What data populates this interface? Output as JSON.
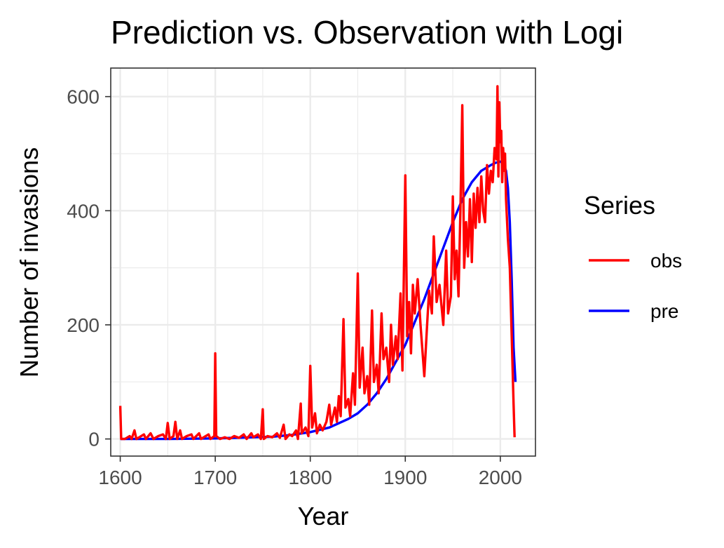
{
  "chart_data": {
    "type": "line",
    "title": "Prediction vs. Observation with Logi",
    "xlabel": "Year",
    "ylabel": "Number of invasions",
    "xlim": [
      1590,
      2037
    ],
    "ylim": [
      -30,
      650
    ],
    "x_ticks": [
      1600,
      1700,
      1800,
      1900,
      2000
    ],
    "x_tick_labels": [
      "1600",
      "1700",
      "1800",
      "1900",
      "2000"
    ],
    "y_ticks": [
      0,
      200,
      400,
      600
    ],
    "y_tick_labels": [
      "0",
      "200",
      "400",
      "600"
    ],
    "grid": true,
    "legend": {
      "title": "Series",
      "position": "right",
      "entries": [
        {
          "label": "obs",
          "color": "#ff0000"
        },
        {
          "label": "pre",
          "color": "#0000ff"
        }
      ]
    },
    "series": [
      {
        "name": "obs",
        "color": "#ff0000",
        "points": [
          [
            1600,
            58
          ],
          [
            1601,
            0
          ],
          [
            1605,
            0
          ],
          [
            1610,
            5
          ],
          [
            1612,
            0
          ],
          [
            1615,
            15
          ],
          [
            1617,
            0
          ],
          [
            1620,
            3
          ],
          [
            1625,
            8
          ],
          [
            1627,
            0
          ],
          [
            1632,
            10
          ],
          [
            1635,
            0
          ],
          [
            1640,
            5
          ],
          [
            1645,
            8
          ],
          [
            1648,
            0
          ],
          [
            1650,
            28
          ],
          [
            1652,
            0
          ],
          [
            1656,
            5
          ],
          [
            1658,
            30
          ],
          [
            1660,
            0
          ],
          [
            1663,
            15
          ],
          [
            1665,
            0
          ],
          [
            1670,
            5
          ],
          [
            1675,
            8
          ],
          [
            1677,
            0
          ],
          [
            1683,
            10
          ],
          [
            1685,
            0
          ],
          [
            1690,
            5
          ],
          [
            1693,
            8
          ],
          [
            1695,
            0
          ],
          [
            1699,
            5
          ],
          [
            1700,
            150
          ],
          [
            1701,
            5
          ],
          [
            1705,
            0
          ],
          [
            1710,
            3
          ],
          [
            1715,
            0
          ],
          [
            1720,
            5
          ],
          [
            1725,
            2
          ],
          [
            1730,
            8
          ],
          [
            1733,
            0
          ],
          [
            1738,
            10
          ],
          [
            1740,
            3
          ],
          [
            1745,
            8
          ],
          [
            1748,
            0
          ],
          [
            1750,
            52
          ],
          [
            1751,
            0
          ],
          [
            1755,
            5
          ],
          [
            1760,
            3
          ],
          [
            1765,
            10
          ],
          [
            1768,
            2
          ],
          [
            1772,
            25
          ],
          [
            1774,
            0
          ],
          [
            1778,
            8
          ],
          [
            1781,
            5
          ],
          [
            1785,
            15
          ],
          [
            1787,
            0
          ],
          [
            1790,
            62
          ],
          [
            1791,
            10
          ],
          [
            1795,
            20
          ],
          [
            1798,
            5
          ],
          [
            1800,
            128
          ],
          [
            1802,
            20
          ],
          [
            1805,
            45
          ],
          [
            1807,
            10
          ],
          [
            1810,
            25
          ],
          [
            1813,
            15
          ],
          [
            1817,
            30
          ],
          [
            1820,
            60
          ],
          [
            1822,
            25
          ],
          [
            1826,
            55
          ],
          [
            1828,
            30
          ],
          [
            1830,
            75
          ],
          [
            1832,
            40
          ],
          [
            1835,
            210
          ],
          [
            1837,
            55
          ],
          [
            1840,
            70
          ],
          [
            1842,
            40
          ],
          [
            1845,
            115
          ],
          [
            1847,
            60
          ],
          [
            1850,
            290
          ],
          [
            1852,
            90
          ],
          [
            1855,
            160
          ],
          [
            1857,
            80
          ],
          [
            1860,
            110
          ],
          [
            1862,
            60
          ],
          [
            1865,
            225
          ],
          [
            1867,
            100
          ],
          [
            1870,
            130
          ],
          [
            1872,
            80
          ],
          [
            1875,
            220
          ],
          [
            1877,
            140
          ],
          [
            1880,
            160
          ],
          [
            1883,
            100
          ],
          [
            1885,
            200
          ],
          [
            1887,
            130
          ],
          [
            1890,
            180
          ],
          [
            1892,
            140
          ],
          [
            1895,
            255
          ],
          [
            1897,
            120
          ],
          [
            1900,
            462
          ],
          [
            1902,
            180
          ],
          [
            1904,
            240
          ],
          [
            1906,
            150
          ],
          [
            1908,
            270
          ],
          [
            1910,
            220
          ],
          [
            1913,
            280
          ],
          [
            1916,
            200
          ],
          [
            1920,
            110
          ],
          [
            1923,
            200
          ],
          [
            1925,
            260
          ],
          [
            1928,
            220
          ],
          [
            1930,
            355
          ],
          [
            1933,
            240
          ],
          [
            1936,
            270
          ],
          [
            1940,
            200
          ],
          [
            1943,
            330
          ],
          [
            1945,
            220
          ],
          [
            1948,
            250
          ],
          [
            1950,
            425
          ],
          [
            1952,
            280
          ],
          [
            1954,
            330
          ],
          [
            1956,
            250
          ],
          [
            1958,
            400
          ],
          [
            1960,
            585
          ],
          [
            1962,
            300
          ],
          [
            1964,
            380
          ],
          [
            1966,
            320
          ],
          [
            1968,
            420
          ],
          [
            1970,
            310
          ],
          [
            1972,
            430
          ],
          [
            1974,
            370
          ],
          [
            1976,
            440
          ],
          [
            1978,
            380
          ],
          [
            1980,
            460
          ],
          [
            1982,
            400
          ],
          [
            1984,
            380
          ],
          [
            1986,
            480
          ],
          [
            1988,
            430
          ],
          [
            1990,
            470
          ],
          [
            1992,
            450
          ],
          [
            1994,
            510
          ],
          [
            1996,
            490
          ],
          [
            1997,
            618
          ],
          [
            1998,
            460
          ],
          [
            1999,
            590
          ],
          [
            2000,
            520
          ],
          [
            2001,
            540
          ],
          [
            2002,
            450
          ],
          [
            2003,
            510
          ],
          [
            2004,
            470
          ],
          [
            2005,
            500
          ],
          [
            2006,
            420
          ],
          [
            2008,
            350
          ],
          [
            2010,
            300
          ],
          [
            2012,
            180
          ],
          [
            2014,
            60
          ],
          [
            2015,
            3
          ]
        ]
      },
      {
        "name": "pre",
        "color": "#0000ff",
        "points": [
          [
            1600,
            0
          ],
          [
            1650,
            0
          ],
          [
            1700,
            1
          ],
          [
            1720,
            2
          ],
          [
            1740,
            3
          ],
          [
            1760,
            4
          ],
          [
            1780,
            7
          ],
          [
            1800,
            12
          ],
          [
            1820,
            20
          ],
          [
            1840,
            35
          ],
          [
            1850,
            45
          ],
          [
            1860,
            60
          ],
          [
            1870,
            80
          ],
          [
            1880,
            105
          ],
          [
            1890,
            135
          ],
          [
            1900,
            165
          ],
          [
            1910,
            205
          ],
          [
            1920,
            245
          ],
          [
            1930,
            290
          ],
          [
            1940,
            335
          ],
          [
            1950,
            380
          ],
          [
            1960,
            420
          ],
          [
            1970,
            450
          ],
          [
            1980,
            470
          ],
          [
            1990,
            480
          ],
          [
            1995,
            484
          ],
          [
            2000,
            486
          ],
          [
            2003,
            484
          ],
          [
            2006,
            470
          ],
          [
            2008,
            440
          ],
          [
            2010,
            380
          ],
          [
            2012,
            280
          ],
          [
            2014,
            160
          ],
          [
            2016,
            100
          ]
        ]
      }
    ]
  }
}
